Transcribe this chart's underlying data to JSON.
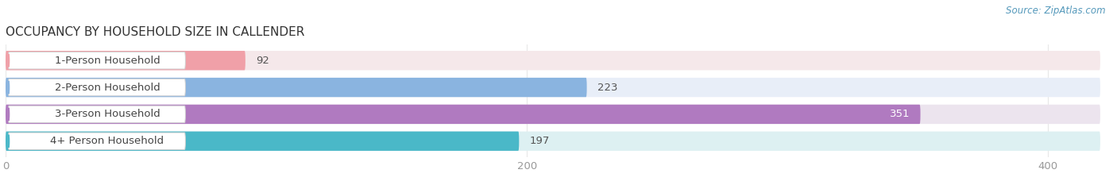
{
  "title": "OCCUPANCY BY HOUSEHOLD SIZE IN CALLENDER",
  "source": "Source: ZipAtlas.com",
  "categories": [
    "1-Person Household",
    "2-Person Household",
    "3-Person Household",
    "4+ Person Household"
  ],
  "values": [
    92,
    223,
    351,
    197
  ],
  "bar_colors": [
    "#f0a0a8",
    "#8ab4e0",
    "#b07ac0",
    "#4ab8c8"
  ],
  "bar_bg_colors": [
    "#f5e8ea",
    "#e8eef8",
    "#ece4ee",
    "#ddf0f2"
  ],
  "label_left_colors": [
    "#f0a0a8",
    "#8ab4e0",
    "#b07ac0",
    "#4ab8c8"
  ],
  "xlim": [
    0,
    420
  ],
  "xticks": [
    0,
    200,
    400
  ],
  "title_fontsize": 11,
  "label_fontsize": 9.5,
  "value_fontsize": 9.5,
  "source_fontsize": 8.5,
  "bg_color": "#ffffff",
  "bar_height": 0.72,
  "label_bg_color": "#ffffff",
  "label_text_color": "#444444",
  "value_text_color_normal": "#555555",
  "value_text_color_inside": "#ffffff",
  "title_color": "#333333",
  "source_color": "#5599bb",
  "tick_color": "#999999",
  "grid_color": "#e8e8e8",
  "inside_value_index": 2
}
